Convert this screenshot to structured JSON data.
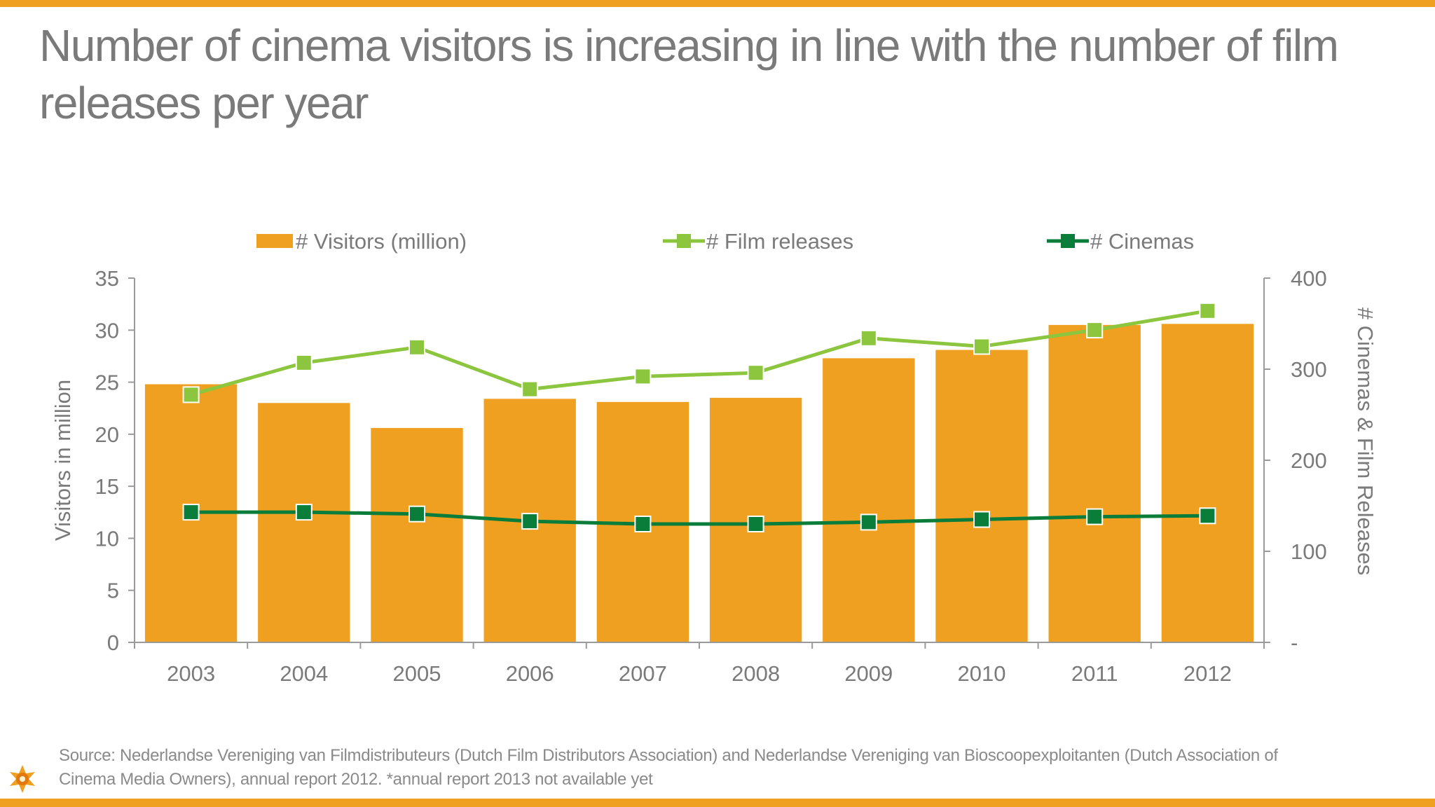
{
  "title": "Number of cinema visitors is increasing in line with the number of film releases per year",
  "source": "Source: Nederlandse Vereniging van Filmdistributeurs  (Dutch Film Distributors Association) and Nederlandse Vereniging van Bioscoopexploitanten (Dutch Association of Cinema Media Owners), annual report 2012. *annual report 2013 not available yet",
  "logo_icon": "sun-emblem-icon",
  "colors": {
    "accent_bar": "#f0a020",
    "visitors": "#f0a020",
    "film_releases": "#8cc63f",
    "cinemas": "#0b7d3a",
    "axis_text": "#7a7a7a",
    "axis_line": "#9a9a9a"
  },
  "chart_data": {
    "type": "bar",
    "categories": [
      "2003",
      "2004",
      "2005",
      "2006",
      "2007",
      "2008",
      "2009",
      "2010",
      "2011",
      "2012"
    ],
    "series": [
      {
        "name": "# Visitors (million)",
        "type": "bar",
        "axis": "left",
        "values": [
          24.8,
          23.0,
          20.6,
          23.4,
          23.1,
          23.5,
          27.3,
          28.1,
          30.5,
          30.6
        ]
      },
      {
        "name": "# Film releases",
        "type": "line",
        "axis": "right",
        "values": [
          272,
          307,
          324,
          278,
          292,
          296,
          334,
          325,
          343,
          364
        ]
      },
      {
        "name": "# Cinemas",
        "type": "line",
        "axis": "right",
        "values": [
          143,
          143,
          141,
          133,
          130,
          130,
          132,
          135,
          138,
          139
        ]
      }
    ],
    "ylabel": "Visitors in million",
    "y2label": "# Cinemas & Film Releases",
    "ylim": [
      0,
      35
    ],
    "yticks": [
      "0",
      "5",
      "10",
      "15",
      "20",
      "25",
      "30",
      "35"
    ],
    "y2lim": [
      0,
      400
    ],
    "y2ticks": [
      "-",
      "100",
      "200",
      "300",
      "400"
    ],
    "grid": false,
    "legend": "top"
  }
}
